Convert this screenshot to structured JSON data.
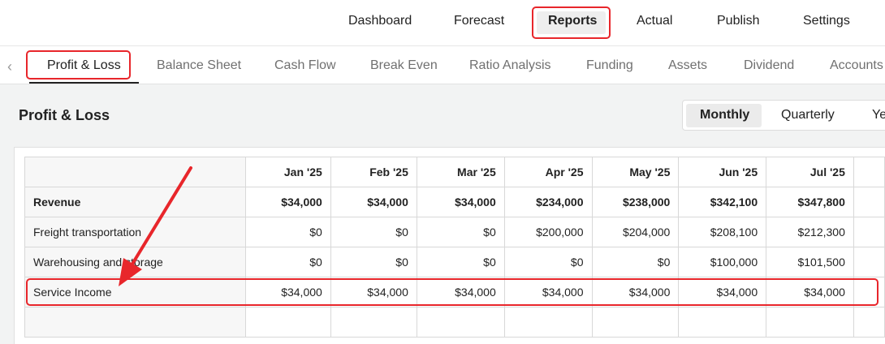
{
  "topnav": {
    "items": [
      "Dashboard",
      "Forecast",
      "Reports",
      "Actual",
      "Publish",
      "Settings"
    ],
    "active": "Reports"
  },
  "subtabs": {
    "items": [
      "Profit & Loss",
      "Balance Sheet",
      "Cash Flow",
      "Break Even",
      "Ratio Analysis",
      "Funding",
      "Assets",
      "Dividend",
      "Accounts"
    ],
    "active": "Profit & Loss"
  },
  "page": {
    "title": "Profit & Loss",
    "periods": [
      "Monthly",
      "Quarterly",
      "Ye"
    ],
    "active_period": "Monthly"
  },
  "table": {
    "columns": [
      "Jan '25",
      "Feb '25",
      "Mar '25",
      "Apr '25",
      "May '25",
      "Jun '25",
      "Jul '25"
    ],
    "rows": [
      {
        "label": "Revenue",
        "values": [
          "$34,000",
          "$34,000",
          "$34,000",
          "$234,000",
          "$238,000",
          "$342,100",
          "$347,800"
        ]
      },
      {
        "label": "Freight transportation",
        "values": [
          "$0",
          "$0",
          "$0",
          "$200,000",
          "$204,000",
          "$208,100",
          "$212,300"
        ]
      },
      {
        "label": "Warehousing and storage",
        "values": [
          "$0",
          "$0",
          "$0",
          "$0",
          "$0",
          "$100,000",
          "$101,500"
        ]
      },
      {
        "label": "Service Income",
        "values": [
          "$34,000",
          "$34,000",
          "$34,000",
          "$34,000",
          "$34,000",
          "$34,000",
          "$34,000"
        ]
      }
    ]
  },
  "colors": {
    "annotation": "#e8262b",
    "active_tab_underline": "#222222"
  }
}
